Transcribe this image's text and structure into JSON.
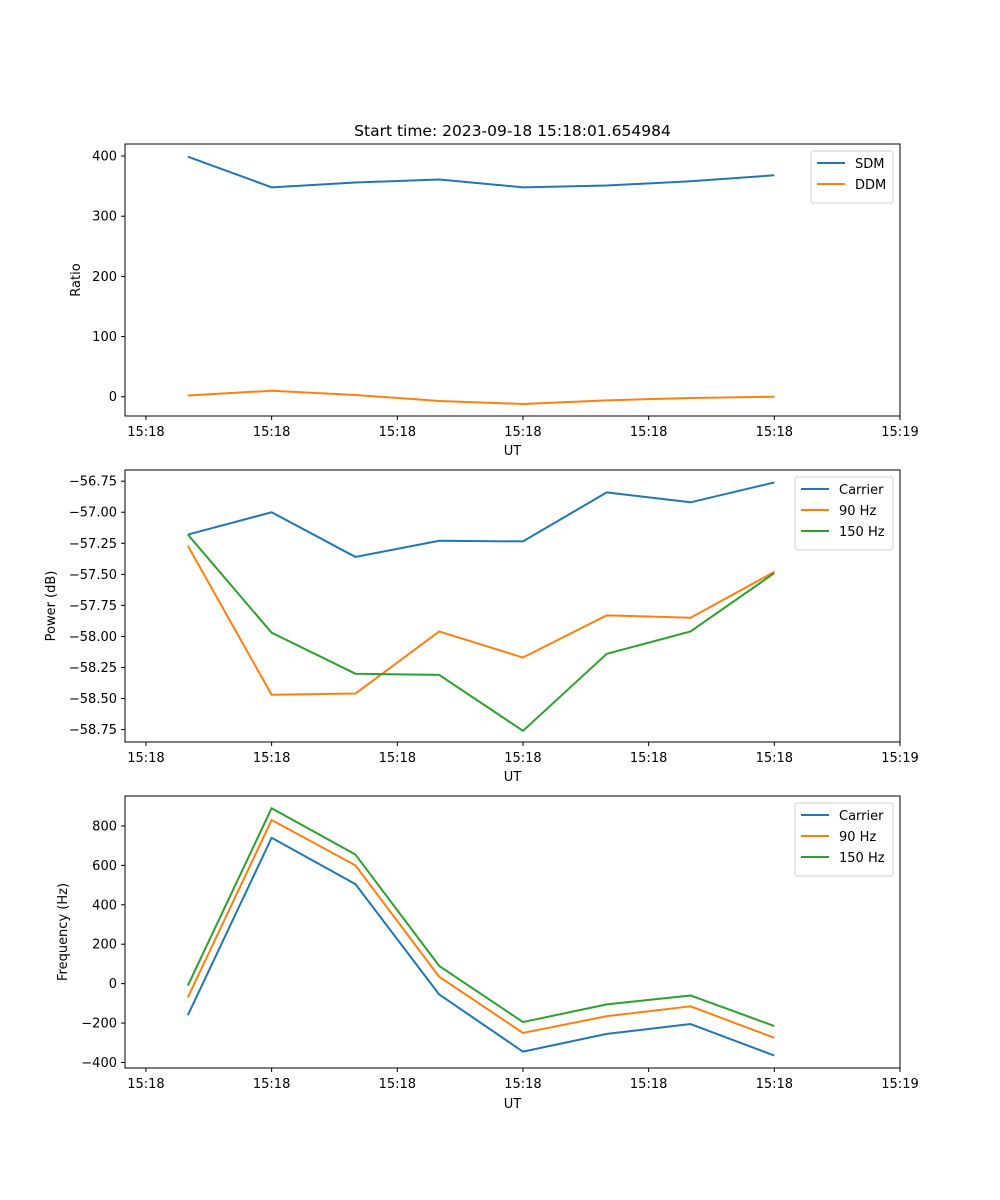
{
  "chart_data": [
    {
      "type": "line",
      "title": "Start time: 2023-09-18 15:18:01.654984",
      "xlabel": "UT",
      "ylabel": "Ratio",
      "x_index": [
        0,
        1,
        2,
        3,
        4,
        5,
        6,
        7
      ],
      "xlim": [
        -0.75,
        8.5
      ],
      "xticks": [
        -0.5,
        1.0,
        2.5,
        4.0,
        5.5,
        7.0,
        8.5
      ],
      "xtick_labels": [
        "15:18",
        "15:18",
        "15:18",
        "15:18",
        "15:18",
        "15:18",
        "15:19"
      ],
      "ylim": [
        -32,
        420
      ],
      "yticks": [
        0,
        100,
        200,
        300,
        400
      ],
      "ytick_labels": [
        "0",
        "100",
        "200",
        "300",
        "400"
      ],
      "legend_position": "top-right",
      "series": [
        {
          "name": "SDM",
          "color": "#1f77b4",
          "values": [
            399,
            348,
            356,
            361,
            348,
            351,
            358,
            368
          ]
        },
        {
          "name": "DDM",
          "color": "#ff7f0e",
          "values": [
            2,
            10,
            3,
            -7,
            -12,
            -6,
            -2,
            0
          ]
        }
      ]
    },
    {
      "type": "line",
      "title": "",
      "xlabel": "UT",
      "ylabel": "Power (dB)",
      "x_index": [
        0,
        1,
        2,
        3,
        4,
        5,
        6,
        7
      ],
      "xlim": [
        -0.75,
        8.5
      ],
      "xticks": [
        -0.5,
        1.0,
        2.5,
        4.0,
        5.5,
        7.0,
        8.5
      ],
      "xtick_labels": [
        "15:18",
        "15:18",
        "15:18",
        "15:18",
        "15:18",
        "15:18",
        "15:19"
      ],
      "ylim": [
        -58.85,
        -56.66
      ],
      "yticks": [
        -56.75,
        -57.0,
        -57.25,
        -57.5,
        -57.75,
        -58.0,
        -58.25,
        -58.5,
        -58.75
      ],
      "ytick_labels": [
        "−56.75",
        "−57.00",
        "−57.25",
        "−57.50",
        "−57.75",
        "−58.00",
        "−58.25",
        "−58.50",
        "−58.75"
      ],
      "legend_position": "top-right",
      "series": [
        {
          "name": "Carrier",
          "color": "#1f77b4",
          "values": [
            -57.18,
            -57.0,
            -57.36,
            -57.23,
            -57.235,
            -56.84,
            -56.92,
            -56.76
          ]
        },
        {
          "name": "90 Hz",
          "color": "#ff7f0e",
          "values": [
            -57.27,
            -58.47,
            -58.46,
            -57.96,
            -58.17,
            -57.83,
            -57.85,
            -57.48
          ]
        },
        {
          "name": "150 Hz",
          "color": "#2ca02c",
          "values": [
            -57.18,
            -57.97,
            -58.3,
            -58.31,
            -58.76,
            -58.14,
            -57.96,
            -57.49
          ]
        }
      ]
    },
    {
      "type": "line",
      "title": "",
      "xlabel": "UT",
      "ylabel": "Frequency (Hz)",
      "x_index": [
        0,
        1,
        2,
        3,
        4,
        5,
        6,
        7
      ],
      "xlim": [
        -0.75,
        8.5
      ],
      "xticks": [
        -0.5,
        1.0,
        2.5,
        4.0,
        5.5,
        7.0,
        8.5
      ],
      "xtick_labels": [
        "15:18",
        "15:18",
        "15:18",
        "15:18",
        "15:18",
        "15:18",
        "15:19"
      ],
      "ylim": [
        -428,
        952
      ],
      "yticks": [
        -400,
        -200,
        0,
        200,
        400,
        600,
        800
      ],
      "ytick_labels": [
        "−400",
        "−200",
        "0",
        "200",
        "400",
        "600",
        "800"
      ],
      "legend_position": "top-right",
      "series": [
        {
          "name": "Carrier",
          "color": "#1f77b4",
          "values": [
            -160,
            740,
            505,
            -55,
            -345,
            -255,
            -205,
            -365
          ]
        },
        {
          "name": "90 Hz",
          "color": "#ff7f0e",
          "values": [
            -70,
            830,
            600,
            35,
            -250,
            -165,
            -115,
            -275
          ]
        },
        {
          "name": "150 Hz",
          "color": "#2ca02c",
          "values": [
            -10,
            890,
            655,
            90,
            -195,
            -105,
            -60,
            -215
          ]
        }
      ]
    }
  ]
}
